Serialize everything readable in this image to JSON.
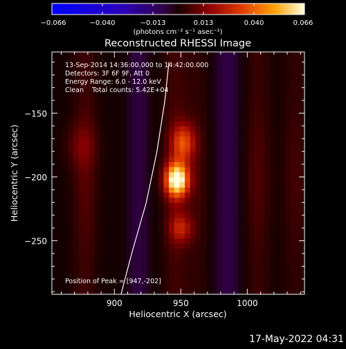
{
  "colorbar": {
    "ticks": [
      "−0.066",
      "−0.040",
      "−0.013",
      "0.013",
      "0.040",
      "0.066"
    ],
    "units_label": "(photons cm⁻² s⁻¹ asec⁻²)"
  },
  "chart_data": {
    "type": "heatmap",
    "title": "Reconstructed RHESSI Image",
    "xlabel": "Heliocentric X (arcsec)",
    "ylabel": "Heliocentric Y (arcsec)",
    "xlim": [
      853,
      1043
    ],
    "ylim": [
      -292,
      -102
    ],
    "x_ticks": [
      "900",
      "950",
      "1000"
    ],
    "y_ticks": [
      "−150",
      "−200",
      "−250"
    ],
    "x_tick_values": [
      900,
      950,
      1000
    ],
    "y_tick_values": [
      -150,
      -200,
      -250
    ],
    "peak": {
      "x": 947,
      "y": -202,
      "value": 0.066
    },
    "colormap": [
      "#0000ff",
      "#000000",
      "#7a0000",
      "#d43300",
      "#ff9900",
      "#ffffcc"
    ],
    "stripes": [
      {
        "x": 878,
        "weight": 0.55
      },
      {
        "x": 946,
        "weight": 0.6
      },
      {
        "x": 962,
        "weight": 0.35
      },
      {
        "x": 1008,
        "weight": 0.5
      },
      {
        "x": 1036,
        "weight": 0.4
      }
    ],
    "blobs": [
      {
        "x": 947,
        "y": -202,
        "amp": 1.0,
        "sx": 6,
        "sy": 9
      },
      {
        "x": 952,
        "y": -173,
        "amp": 0.45,
        "sx": 6,
        "sy": 10
      },
      {
        "x": 950,
        "y": -240,
        "amp": 0.3,
        "sx": 6,
        "sy": 8
      },
      {
        "x": 875,
        "y": -175,
        "amp": 0.12,
        "sx": 8,
        "sy": 12
      }
    ],
    "limb_points": [
      [
        905,
        -292
      ],
      [
        913,
        -260
      ],
      [
        924,
        -220
      ],
      [
        932,
        -180
      ],
      [
        938,
        -140
      ],
      [
        941,
        -110
      ]
    ],
    "info_lines": [
      "13-Sep-2014 14:36:00.000 to 14:42:00.000",
      "Detectors: 3F 6F 9F, Att 0",
      "Energy Range: 6.0 - 12.0 keV",
      "Clean    Total counts: 5.42E+04"
    ],
    "peak_label": "Position of Peak = [947,-202]"
  },
  "timestamp": "17-May-2022 04:31"
}
